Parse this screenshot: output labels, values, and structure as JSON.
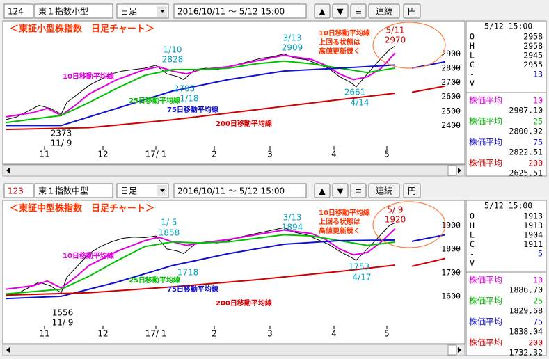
{
  "panels": [
    {
      "toolbar": {
        "code": "124",
        "name": "東１指数小型",
        "period": "日足",
        "range": "2016/10/11 ～ 5/12 15:00",
        "buttons": [
          "▲",
          "▼",
          "≡",
          "連続",
          "円"
        ]
      },
      "chart_data": {
        "type": "line",
        "title": "＜東証小型株指数　日足チャート＞",
        "xlim": [
          0,
          165
        ],
        "xticks": [
          {
            "value": 14,
            "label": "11"
          },
          {
            "value": 35,
            "label": "12"
          },
          {
            "value": 54,
            "label": "17/ 1"
          },
          {
            "value": 75,
            "label": "2"
          },
          {
            "value": 95,
            "label": "3"
          },
          {
            "value": 118,
            "label": "4"
          },
          {
            "value": 137,
            "label": "5"
          }
        ],
        "ylim": [
          2130,
          3130
        ],
        "yticks": [
          2400,
          2500,
          2600,
          2700,
          2800,
          2900
        ],
        "series": [
          {
            "name": "price",
            "color": "#000000",
            "x": [
              0,
              4,
              8,
              12,
              16,
              20,
              22,
              26,
              30,
              34,
              38,
              42,
              46,
              50,
              54,
              58,
              62,
              64,
              68,
              72,
              76,
              80,
              84,
              88,
              92,
              96,
              100,
              104,
              108,
              112,
              116,
              120,
              124,
              126,
              130,
              134,
              138,
              140
            ],
            "values": [
              2440,
              2460,
              2500,
              2540,
              2520,
              2480,
              2560,
              2620,
              2680,
              2720,
              2760,
              2780,
              2790,
              2800,
              2820,
              2760,
              2740,
              2720,
              2790,
              2800,
              2790,
              2810,
              2830,
              2850,
              2870,
              2880,
              2900,
              2870,
              2860,
              2830,
              2800,
              2740,
              2700,
              2670,
              2760,
              2850,
              2930,
              2955
            ]
          },
          {
            "name": "10日移動平均線",
            "color": "#e000e0",
            "x": [
              0,
              10,
              15,
              20,
              25,
              30,
              40,
              50,
              55,
              60,
              65,
              70,
              80,
              90,
              100,
              110,
              115,
              120,
              125,
              130,
              135,
              140
            ],
            "values": [
              2460,
              2490,
              2520,
              2470,
              2540,
              2620,
              2720,
              2790,
              2810,
              2780,
              2760,
              2790,
              2810,
              2850,
              2890,
              2860,
              2820,
              2760,
              2720,
              2740,
              2800,
              2907
            ]
          },
          {
            "name": "25日移動平均線",
            "color": "#00c000",
            "x": [
              0,
              20,
              30,
              40,
              50,
              60,
              70,
              80,
              90,
              100,
              110,
              120,
              130,
              140
            ],
            "values": [
              2420,
              2470,
              2560,
              2660,
              2750,
              2790,
              2790,
              2800,
              2830,
              2850,
              2830,
              2800,
              2770,
              2801
            ]
          },
          {
            "name": "75日移動平均線",
            "color": "#1010d0",
            "x": [
              0,
              20,
              40,
              60,
              80,
              100,
              120,
              140,
              143,
              146,
              158
            ],
            "values": [
              2400,
              2400,
              2520,
              2640,
              2720,
              2780,
              2800,
              2822,
              null,
              2800,
              2845
            ]
          },
          {
            "name": "200日移動平均線",
            "color": "#d00000",
            "x": [
              0,
              30,
              60,
              90,
              120,
              140,
              143,
              146,
              158
            ],
            "values": [
              2372,
              2385,
              2440,
              2510,
              2580,
              2625,
              null,
              2632,
              2675
            ]
          }
        ],
        "annotations": [
          "1/10",
          "2828",
          "2705",
          "1/18",
          "3/13",
          "2909",
          "5/11",
          "2970",
          "2661",
          "4/14",
          "2373",
          "11/ 9"
        ],
        "note": [
          "10日移動平均線",
          "上回る状態は",
          "高値更新続く"
        ]
      },
      "info": {
        "date": "5/12 15:00",
        "rows": [
          [
            "O",
            "2958"
          ],
          [
            "H",
            "2958"
          ],
          [
            "L",
            "2945"
          ],
          [
            "C",
            "2955"
          ],
          [
            "-",
            "13"
          ],
          [
            "V"
          ]
        ],
        "ma": [
          {
            "label": "株価平均",
            "period": "10",
            "value": "2907.10",
            "color": "#e000e0"
          },
          {
            "label": "株価平均",
            "period": "25",
            "value": "2800.92",
            "color": "#00b000"
          },
          {
            "label": "株価平均",
            "period": "75",
            "value": "2822.51",
            "color": "#1010d0"
          },
          {
            "label": "株価平均",
            "period": "200",
            "value": "2625.51",
            "color": "#d00000"
          }
        ]
      }
    },
    {
      "toolbar": {
        "code": "123",
        "name": "東１指数中型",
        "period": "日足",
        "range": "2016/10/11 ～ 5/12 15:00",
        "buttons": [
          "▲",
          "▼",
          "≡",
          "連続",
          "円"
        ]
      },
      "chart_data": {
        "type": "line",
        "title": "＜東証中型株指数　日足チャート＞",
        "xlim": [
          0,
          165
        ],
        "xticks": [
          {
            "value": 14,
            "label": "11"
          },
          {
            "value": 35,
            "label": "12"
          },
          {
            "value": 54,
            "label": "17/ 1"
          },
          {
            "value": 75,
            "label": "2"
          },
          {
            "value": 95,
            "label": "3"
          },
          {
            "value": 118,
            "label": "4"
          },
          {
            "value": 137,
            "label": "5"
          }
        ],
        "ylim": [
          1400,
          2005
        ],
        "yticks": [
          1600,
          1700,
          1800,
          1900
        ],
        "series": [
          {
            "name": "price",
            "color": "#000000",
            "x": [
              0,
              4,
              8,
              12,
              16,
              20,
              22,
              26,
              30,
              34,
              38,
              42,
              46,
              50,
              54,
              58,
              62,
              64,
              68,
              72,
              76,
              80,
              84,
              88,
              92,
              96,
              100,
              104,
              108,
              112,
              116,
              120,
              124,
              126,
              130,
              134,
              138,
              140
            ],
            "values": [
              1600,
              1610,
              1635,
              1660,
              1645,
              1615,
              1680,
              1730,
              1780,
              1810,
              1830,
              1845,
              1850,
              1848,
              1855,
              1800,
              1790,
              1780,
              1820,
              1830,
              1825,
              1835,
              1850,
              1860,
              1870,
              1880,
              1890,
              1870,
              1860,
              1840,
              1820,
              1790,
              1765,
              1753,
              1800,
              1850,
              1900,
              1911
            ]
          },
          {
            "name": "10日移動平均線",
            "color": "#e000e0",
            "x": [
              0,
              10,
              15,
              20,
              25,
              30,
              40,
              50,
              55,
              60,
              65,
              70,
              80,
              90,
              100,
              110,
              115,
              120,
              125,
              130,
              135,
              140
            ],
            "values": [
              1630,
              1645,
              1665,
              1635,
              1680,
              1730,
              1790,
              1835,
              1850,
              1830,
              1815,
              1825,
              1840,
              1860,
              1880,
              1865,
              1840,
              1800,
              1775,
              1785,
              1830,
              1886
            ]
          },
          {
            "name": "25日移動平均線",
            "color": "#00c000",
            "x": [
              0,
              20,
              30,
              40,
              50,
              60,
              70,
              80,
              90,
              100,
              110,
              120,
              130,
              140
            ],
            "values": [
              1610,
              1630,
              1685,
              1750,
              1810,
              1830,
              1825,
              1830,
              1845,
              1860,
              1855,
              1835,
              1815,
              1829
            ]
          },
          {
            "name": "75日移動平均線",
            "color": "#1010d0",
            "x": [
              0,
              20,
              40,
              60,
              80,
              100,
              120,
              140,
              143,
              146,
              158
            ],
            "values": [
              1590,
              1600,
              1660,
              1730,
              1780,
              1820,
              1835,
              1838,
              null,
              1832,
              1860
            ]
          },
          {
            "name": "200日移動平均線",
            "color": "#d00000",
            "x": [
              0,
              30,
              60,
              90,
              120,
              140,
              143,
              146,
              158
            ],
            "values": [
              1605,
              1615,
              1640,
              1670,
              1705,
              1732,
              null,
              1727,
              1760
            ]
          }
        ],
        "annotations": [
          "1/ 5",
          "1858",
          "1718",
          "3/13",
          "1894",
          "5/ 9",
          "1920",
          "1753",
          "4/17",
          "1556",
          "11/ 9"
        ],
        "note": [
          "10日移動平均線",
          "上回る状態は",
          "高値更新続く"
        ]
      },
      "info": {
        "date": "5/12 15:00",
        "rows": [
          [
            "O",
            "1913"
          ],
          [
            "H",
            "1913"
          ],
          [
            "L",
            "1904"
          ],
          [
            "C",
            "1911"
          ],
          [
            "-",
            "5"
          ],
          [
            "V"
          ]
        ],
        "ma": [
          {
            "label": "株価平均",
            "period": "10",
            "value": "1886.70",
            "color": "#e000e0"
          },
          {
            "label": "株価平均",
            "period": "25",
            "value": "1829.68",
            "color": "#00b000"
          },
          {
            "label": "株価平均",
            "period": "75",
            "value": "1838.04",
            "color": "#1010d0"
          },
          {
            "label": "株価平均",
            "period": "200",
            "value": "1732.32",
            "color": "#d00000"
          }
        ]
      }
    }
  ]
}
